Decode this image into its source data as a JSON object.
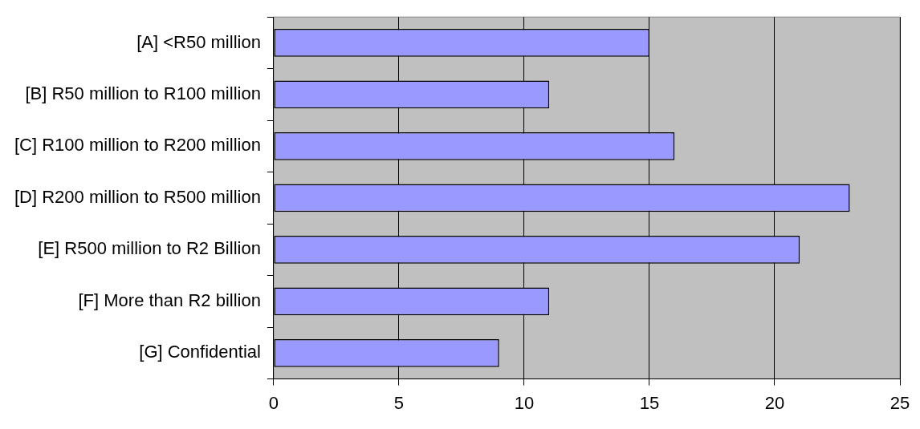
{
  "chart_data": {
    "type": "bar",
    "orientation": "horizontal",
    "categories": [
      "[A] <R50 million",
      "[B] R50 million to R100 million",
      "[C] R100 million to R200 million",
      "[D] R200 million to R500 million",
      "[E] R500 million to R2 Billion",
      "[F] More than R2 billion",
      "[G] Confidential"
    ],
    "values": [
      15,
      11,
      16,
      23,
      21,
      11,
      9
    ],
    "color": "#9999ff",
    "xlim": [
      0,
      25
    ],
    "xticks": [
      0,
      5,
      10,
      15,
      20,
      25
    ],
    "grid": "x",
    "legend": false
  }
}
